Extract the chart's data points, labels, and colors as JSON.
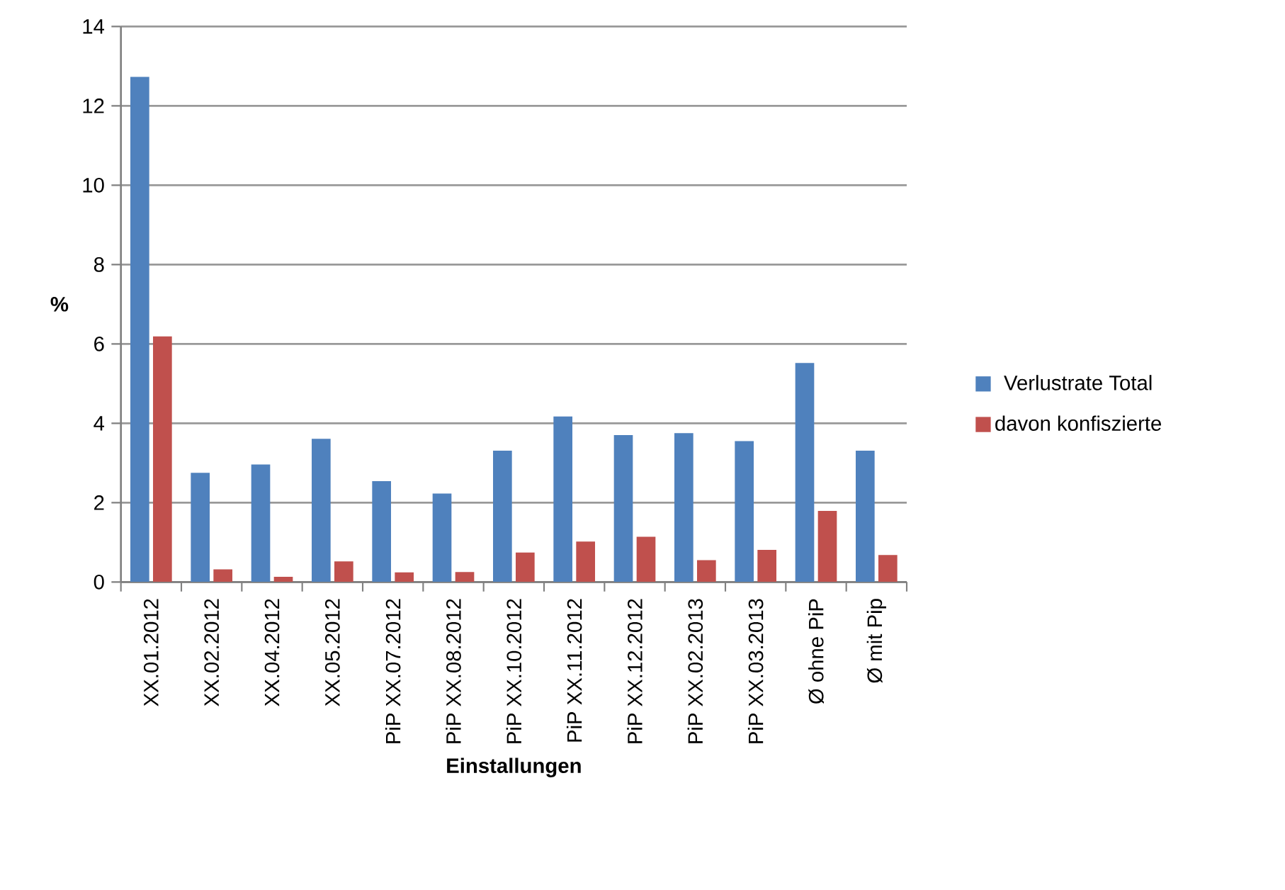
{
  "chart_data": {
    "type": "bar",
    "xlabel": "Einstallungen",
    "ylabel": "%",
    "categories": [
      "XX.01.2012",
      "XX.02.2012",
      "XX.04.2012",
      "XX.05.2012",
      "PiP XX.07.2012",
      "PiP XX.08.2012",
      "PiP XX.10.2012",
      "PiP XX.11.2012",
      "PiP XX.12.2012",
      "PiP XX.02.2013",
      "PiP XX.03.2013",
      "Ø ohne PiP",
      "Ø mit Pip"
    ],
    "series": [
      {
        "name": "Verlustrate Total",
        "color": "#4f81bd",
        "values": [
          12.73,
          2.75,
          2.96,
          3.61,
          2.54,
          2.23,
          3.31,
          4.17,
          3.7,
          3.75,
          3.55,
          5.52,
          3.31
        ]
      },
      {
        "name": "davon konfiszierte",
        "color": "#c0504d",
        "values": [
          6.19,
          0.32,
          0.13,
          0.52,
          0.24,
          0.25,
          0.74,
          1.02,
          1.14,
          0.55,
          0.81,
          1.79,
          0.68
        ]
      }
    ],
    "ylim": [
      0,
      14
    ],
    "yticks": [
      0,
      2,
      4,
      6,
      8,
      10,
      12,
      14
    ],
    "grid": "y",
    "legend": "right"
  }
}
